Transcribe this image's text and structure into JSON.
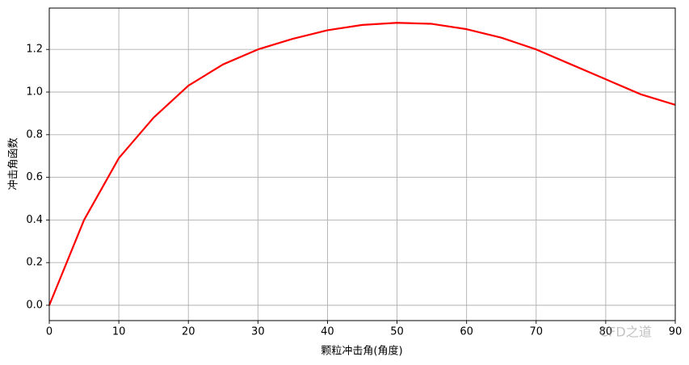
{
  "chart_data": {
    "type": "line",
    "x_label": "颗粒冲击角(角度)",
    "y_label": "冲击角函数",
    "annotation": "CFD之道",
    "x": [
      0,
      5,
      10,
      15,
      20,
      25,
      30,
      35,
      40,
      45,
      50,
      55,
      60,
      65,
      70,
      75,
      80,
      85,
      90
    ],
    "series": [
      {
        "name": "f",
        "color": "#ff0000",
        "values": [
          0,
          0.4,
          0.69,
          0.88,
          1.03,
          1.13,
          1.2,
          1.25,
          1.29,
          1.315,
          1.325,
          1.32,
          1.295,
          1.255,
          1.2,
          1.13,
          1.06,
          0.99,
          0.94
        ]
      }
    ],
    "xlim": [
      0,
      90
    ],
    "xticks": [
      0,
      10,
      20,
      30,
      40,
      50,
      60,
      70,
      80,
      90
    ],
    "ylim": [
      -0.072,
      1.394
    ],
    "yticks": [
      {
        "value": 0,
        "label": "0.0"
      },
      0.2,
      0.4,
      0.6,
      0.8,
      {
        "value": 1,
        "label": "1.0"
      },
      1.2
    ],
    "grid": true
  }
}
